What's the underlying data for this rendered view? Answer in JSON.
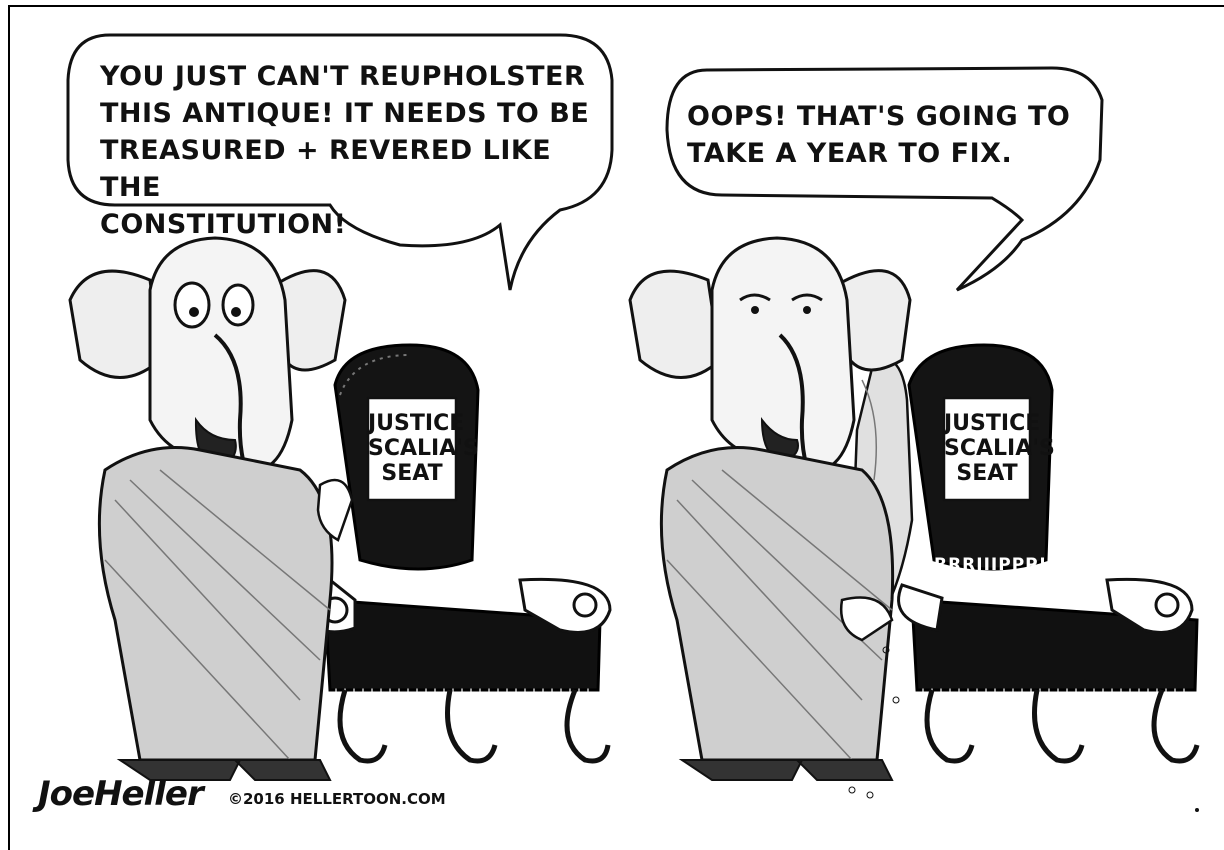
{
  "panels": [
    {
      "speech": "YOU JUST CAN'T REUPHOLSTER\nTHIS ANTIQUE! IT NEEDS TO BE\nTREASURED + REVERED LIKE THE\nCONSTITUTION!",
      "chair_sign": "JUSTICE\nSCALIA'S\nSEAT"
    },
    {
      "speech": "OOPS! THAT'S GOING TO\nTAKE A YEAR TO FIX.",
      "chair_sign": "JUSTICE\nSCALIA'S\nSEAT",
      "sound_effect": "RRRIIIPPP!!"
    }
  ],
  "signature": {
    "artist": "JoeHeller",
    "copyright": "©2016 HELLERTOON.COM"
  }
}
